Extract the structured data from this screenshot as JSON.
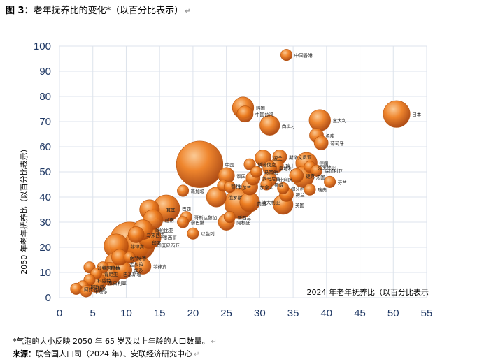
{
  "figure_title": "图 3：",
  "figure_subtitle": "老年抚养比的变化*（以百分比表示）",
  "note": "*气泡的大小反映 2050 年 65 岁及以上年龄的人口数量。",
  "source_label": "来源：",
  "source_text": "联合国人口司（2024 年）、安联经济研究中心",
  "return_mark": "↵",
  "colors": {
    "accent": "#E06A10",
    "grid": "#DDE3EC",
    "axis_text": "#1F3864"
  },
  "chart_data": {
    "type": "scatter",
    "title": "",
    "xlabel": "2024 年老年抚养比（以百分比表示",
    "ylabel": "2050 年老年抚养比（以百分比表示）",
    "xlim": [
      0,
      55
    ],
    "ylim": [
      0,
      100
    ],
    "x_ticks": [
      0,
      5,
      10,
      15,
      20,
      25,
      30,
      35,
      40,
      45,
      50,
      55
    ],
    "y_ticks": [
      0,
      10,
      20,
      30,
      40,
      50,
      60,
      70,
      80,
      90,
      100
    ],
    "grid": true,
    "points": [
      {
        "label": "中国香港",
        "x": 34.0,
        "y": 96.5,
        "size": 2
      },
      {
        "label": "韩国",
        "x": 27.5,
        "y": 75.5,
        "size": 7
      },
      {
        "label": "中国台湾",
        "x": 27.8,
        "y": 73.0,
        "size": 4
      },
      {
        "label": "西班牙",
        "x": 31.5,
        "y": 68.5,
        "size": 6
      },
      {
        "label": "意大利",
        "x": 39.0,
        "y": 70.5,
        "size": 7
      },
      {
        "label": "日本",
        "x": 50.5,
        "y": 73.0,
        "size": 11
      },
      {
        "label": "希腊",
        "x": 38.5,
        "y": 64.5,
        "size": 3
      },
      {
        "label": "葡萄牙",
        "x": 39.2,
        "y": 61.5,
        "size": 3
      },
      {
        "label": "中国",
        "x": 21.0,
        "y": 53.0,
        "size": 33
      },
      {
        "label": "波兰",
        "x": 30.5,
        "y": 55.5,
        "size": 4
      },
      {
        "label": "斯洛文尼亚",
        "x": 33.0,
        "y": 56.0,
        "size": 3
      },
      {
        "label": "斯洛伐克",
        "x": 28.5,
        "y": 53.0,
        "size": 2
      },
      {
        "label": "瑞士",
        "x": 32.5,
        "y": 52.5,
        "size": 3
      },
      {
        "label": "奥地利",
        "x": 31.5,
        "y": 51.5,
        "size": 3
      },
      {
        "label": "德国",
        "x": 37.0,
        "y": 53.5,
        "size": 7
      },
      {
        "label": "克罗地亚",
        "x": 37.5,
        "y": 52.0,
        "size": 2
      },
      {
        "label": "保加利亚",
        "x": 38.5,
        "y": 50.5,
        "size": 2
      },
      {
        "label": "马耳他",
        "x": 29.5,
        "y": 50.0,
        "size": 2
      },
      {
        "label": "捷克",
        "x": 35.5,
        "y": 48.5,
        "size": 3
      },
      {
        "label": "泰国",
        "x": 25.0,
        "y": 48.5,
        "size": 4
      },
      {
        "label": "罗马尼亚",
        "x": 29.0,
        "y": 47.5,
        "size": 3
      },
      {
        "label": "比利时",
        "x": 31.5,
        "y": 47.0,
        "size": 3
      },
      {
        "label": "法国",
        "x": 36.5,
        "y": 48.0,
        "size": 7
      },
      {
        "label": "芬兰",
        "x": 40.5,
        "y": 46.0,
        "size": 2
      },
      {
        "label": "智利",
        "x": 24.5,
        "y": 44.5,
        "size": 2
      },
      {
        "label": "爱尔兰",
        "x": 25.5,
        "y": 44.0,
        "size": 2
      },
      {
        "label": "加拿大",
        "x": 28.5,
        "y": 44.0,
        "size": 4
      },
      {
        "label": "挪威",
        "x": 31.0,
        "y": 45.0,
        "size": 2
      },
      {
        "label": "匈牙利",
        "x": 33.5,
        "y": 43.5,
        "size": 2
      },
      {
        "label": "瑞典",
        "x": 37.5,
        "y": 43.0,
        "size": 2
      },
      {
        "label": "新加坡",
        "x": 18.5,
        "y": 42.5,
        "size": 2
      },
      {
        "label": "俄罗斯",
        "x": 23.5,
        "y": 40.0,
        "size": 6
      },
      {
        "label": "荷兰",
        "x": 34.0,
        "y": 41.0,
        "size": 3
      },
      {
        "label": "澳大利亚",
        "x": 28.5,
        "y": 38.0,
        "size": 6
      },
      {
        "label": "英国",
        "x": 33.5,
        "y": 37.0,
        "size": 6
      },
      {
        "label": "美国",
        "x": 27.0,
        "y": 37.5,
        "size": 14
      },
      {
        "label": "土耳其",
        "x": 13.5,
        "y": 35.0,
        "size": 6
      },
      {
        "label": "巴西",
        "x": 16.0,
        "y": 35.5,
        "size": 11
      },
      {
        "label": "越南",
        "x": 14.0,
        "y": 31.0,
        "size": 6
      },
      {
        "label": "新西兰",
        "x": 25.5,
        "y": 32.0,
        "size": 2
      },
      {
        "label": "阿根廷",
        "x": 25.0,
        "y": 30.0,
        "size": 4
      },
      {
        "label": "哥斯达黎加",
        "x": 19.0,
        "y": 32.0,
        "size": 2
      },
      {
        "label": "黎巴嫩",
        "x": 18.5,
        "y": 30.0,
        "size": 2
      },
      {
        "label": "印度",
        "x": 10.5,
        "y": 22.0,
        "size": 25
      },
      {
        "label": "哥伦比亚",
        "x": 12.5,
        "y": 27.0,
        "size": 6
      },
      {
        "label": "马来西亚",
        "x": 11.5,
        "y": 25.0,
        "size": 4
      },
      {
        "label": "墨西哥",
        "x": 13.5,
        "y": 24.0,
        "size": 8
      },
      {
        "label": "以色列",
        "x": 20.0,
        "y": 25.5,
        "size": 2
      },
      {
        "label": "印度尼西亚",
        "x": 12.0,
        "y": 21.0,
        "size": 14
      },
      {
        "label": "菲律宾",
        "x": 8.5,
        "y": 20.5,
        "size": 9
      },
      {
        "label": "南非",
        "x": 9.0,
        "y": 16.0,
        "size": 4
      },
      {
        "label": "沙特阿拉伯",
        "x": 4.5,
        "y": 12.0,
        "size": 2
      },
      {
        "label": "巴林",
        "x": 6.5,
        "y": 12.0,
        "size": 2
      },
      {
        "label": "孟加拉",
        "x": 8.5,
        "y": 13.5,
        "size": 8
      },
      {
        "label": "秘鲁",
        "x": 10.5,
        "y": 16.0,
        "size": 2
      },
      {
        "label": "菲律宾",
        "x": 12.5,
        "y": 12.5,
        "size": 4
      },
      {
        "label": "埃及",
        "x": 9.5,
        "y": 11.0,
        "size": 5
      },
      {
        "label": "肯尼亚",
        "x": 5.5,
        "y": 9.5,
        "size": 2
      },
      {
        "label": "巴基斯坦",
        "x": 7.5,
        "y": 9.5,
        "size": 8
      },
      {
        "label": "科威特",
        "x": 4.5,
        "y": 7.0,
        "size": 2
      },
      {
        "label": "尼日利亚",
        "x": 5.5,
        "y": 6.0,
        "size": 6
      },
      {
        "label": "阿联酋",
        "x": 3.5,
        "y": 4.5,
        "size": 2
      },
      {
        "label": "阿拉伯联合",
        "x": 2.5,
        "y": 3.5,
        "size": 2
      },
      {
        "label": "卡塔尔",
        "x": 4.0,
        "y": 2.5,
        "size": 2
      }
    ]
  }
}
